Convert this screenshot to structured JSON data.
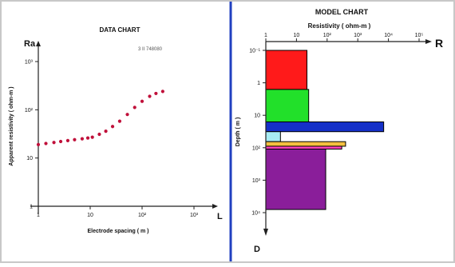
{
  "colors": {
    "frame": "#c8c8c8",
    "divider": "#2040c0",
    "points": "#c0103a",
    "axis": "#202020",
    "text": "#111111"
  },
  "chart_data": [
    {
      "type": "scatter",
      "title": "DATA CHART",
      "annotation": "3 II 748080",
      "xlabel": "Electrode spacing  ( m )",
      "ylabel": "Apparent resistivity ( ohm-m )",
      "x_axis_letter": "L",
      "y_axis_letter": "Ra",
      "x_scale": "log",
      "y_scale": "log",
      "xlim": [
        1,
        1000
      ],
      "ylim": [
        1,
        1000
      ],
      "x_ticks": [
        {
          "value": 1,
          "label": "1"
        },
        {
          "value": 10,
          "label": "10"
        },
        {
          "value": 100,
          "label": "10²"
        },
        {
          "value": 1000,
          "label": "10³"
        }
      ],
      "y_ticks": [
        {
          "value": 1,
          "label": "1"
        },
        {
          "value": 10,
          "label": "10"
        },
        {
          "value": 100,
          "label": "10²"
        },
        {
          "value": 1000,
          "label": "10³"
        }
      ],
      "grid": false,
      "series": [
        {
          "points": [
            {
              "x": 1.0,
              "y": 19
            },
            {
              "x": 1.4,
              "y": 20
            },
            {
              "x": 2.0,
              "y": 21
            },
            {
              "x": 2.7,
              "y": 22
            },
            {
              "x": 3.7,
              "y": 23
            },
            {
              "x": 5.0,
              "y": 24
            },
            {
              "x": 7.0,
              "y": 25
            },
            {
              "x": 9.0,
              "y": 26
            },
            {
              "x": 11,
              "y": 27
            },
            {
              "x": 15,
              "y": 31
            },
            {
              "x": 20,
              "y": 36
            },
            {
              "x": 27,
              "y": 45
            },
            {
              "x": 37,
              "y": 58
            },
            {
              "x": 52,
              "y": 80
            },
            {
              "x": 72,
              "y": 112
            },
            {
              "x": 100,
              "y": 150
            },
            {
              "x": 140,
              "y": 190
            },
            {
              "x": 185,
              "y": 218
            },
            {
              "x": 250,
              "y": 240
            }
          ]
        }
      ]
    },
    {
      "type": "bar",
      "orientation": "horizontal-layers",
      "title": "MODEL CHART",
      "xlabel": "Resistivity  ( ohm-m )",
      "ylabel": "Depth  ( m )",
      "x_axis_letter": "R",
      "y_axis_letter": "D",
      "x_scale": "log",
      "y_scale": "log",
      "xlim": [
        1,
        100000
      ],
      "ylim": [
        0.1,
        10000
      ],
      "x_ticks": [
        {
          "value": 1,
          "label": "1"
        },
        {
          "value": 10,
          "label": "10"
        },
        {
          "value": 100,
          "label": "10²"
        },
        {
          "value": 1000,
          "label": "10³"
        },
        {
          "value": 10000,
          "label": "10⁴"
        },
        {
          "value": 100000,
          "label": "10⁵"
        }
      ],
      "y_ticks": [
        {
          "value": 0.1,
          "label": "10⁻¹"
        },
        {
          "value": 1,
          "label": "1"
        },
        {
          "value": 10,
          "label": "10"
        },
        {
          "value": 100,
          "label": "10²"
        },
        {
          "value": 1000,
          "label": "10³"
        },
        {
          "value": 10000,
          "label": "10⁴"
        }
      ],
      "layers": [
        {
          "top": 0.1,
          "bottom": 1.6,
          "resistivity": 22,
          "color": "#ff1a1a"
        },
        {
          "top": 1.6,
          "bottom": 16,
          "resistivity": 25,
          "color": "#22e02a"
        },
        {
          "top": 16,
          "bottom": 32,
          "resistivity": 7000,
          "color": "#1530c8"
        },
        {
          "top": 32,
          "bottom": 65,
          "resistivity": 3,
          "color": "#a8ecf4"
        },
        {
          "top": 65,
          "bottom": 90,
          "resistivity": 400,
          "color": "#f4c040"
        },
        {
          "top": 90,
          "bottom": 110,
          "resistivity": 300,
          "color": "#ff40c0"
        },
        {
          "top": 110,
          "bottom": 8000,
          "resistivity": 90,
          "color": "#8a1e9a"
        }
      ]
    }
  ]
}
